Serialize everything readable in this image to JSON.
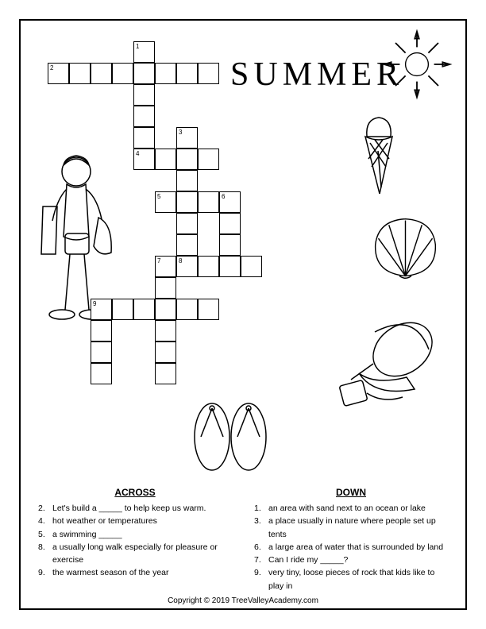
{
  "title": "SUMMER",
  "copyright": "Copyright © 2019 TreeValleyAcademy.com",
  "cell_size": 27,
  "grid_colors": {
    "border": "#000000",
    "fill": "#ffffff"
  },
  "clues": {
    "across_label": "ACROSS",
    "down_label": "DOWN",
    "across": [
      {
        "n": "2.",
        "text": "Let's build a _____ to help keep us warm."
      },
      {
        "n": "4.",
        "text": "hot weather or temperatures"
      },
      {
        "n": "5.",
        "text": "a swimming _____"
      },
      {
        "n": "8.",
        "text": "a usually long walk especially for pleasure or exercise"
      },
      {
        "n": "9.",
        "text": "the warmest season of the year"
      }
    ],
    "down": [
      {
        "n": "1.",
        "text": "an area with sand next to an ocean or lake"
      },
      {
        "n": "3.",
        "text": "a place usually in nature where people set up tents"
      },
      {
        "n": "6.",
        "text": "a large area of water that is surrounded by land"
      },
      {
        "n": "7.",
        "text": "Can I ride my _____?"
      },
      {
        "n": "9.",
        "text": "very tiny, loose pieces of rock that kids like to play in"
      }
    ]
  },
  "grid": {
    "cells": [
      {
        "r": 0,
        "c": 4,
        "n": "1"
      },
      {
        "r": 1,
        "c": 0,
        "n": "2"
      },
      {
        "r": 1,
        "c": 1
      },
      {
        "r": 1,
        "c": 2
      },
      {
        "r": 1,
        "c": 3
      },
      {
        "r": 1,
        "c": 4
      },
      {
        "r": 1,
        "c": 5
      },
      {
        "r": 1,
        "c": 6
      },
      {
        "r": 1,
        "c": 7
      },
      {
        "r": 2,
        "c": 4
      },
      {
        "r": 3,
        "c": 4
      },
      {
        "r": 4,
        "c": 4
      },
      {
        "r": 4,
        "c": 6,
        "n": "3"
      },
      {
        "r": 5,
        "c": 4,
        "n": "4"
      },
      {
        "r": 5,
        "c": 5
      },
      {
        "r": 5,
        "c": 6
      },
      {
        "r": 5,
        "c": 7
      },
      {
        "r": 6,
        "c": 6
      },
      {
        "r": 7,
        "c": 5,
        "n": "5"
      },
      {
        "r": 7,
        "c": 6
      },
      {
        "r": 7,
        "c": 7
      },
      {
        "r": 7,
        "c": 8,
        "n": "6"
      },
      {
        "r": 8,
        "c": 6
      },
      {
        "r": 8,
        "c": 8
      },
      {
        "r": 9,
        "c": 6
      },
      {
        "r": 9,
        "c": 8
      },
      {
        "r": 10,
        "c": 5,
        "n": "7"
      },
      {
        "r": 10,
        "c": 6,
        "n": "8"
      },
      {
        "r": 10,
        "c": 7
      },
      {
        "r": 10,
        "c": 8
      },
      {
        "r": 10,
        "c": 9
      },
      {
        "r": 11,
        "c": 5
      },
      {
        "r": 12,
        "c": 2,
        "n": "9"
      },
      {
        "r": 12,
        "c": 3
      },
      {
        "r": 12,
        "c": 4
      },
      {
        "r": 12,
        "c": 5
      },
      {
        "r": 12,
        "c": 6
      },
      {
        "r": 12,
        "c": 7
      },
      {
        "r": 13,
        "c": 2
      },
      {
        "r": 13,
        "c": 5
      },
      {
        "r": 14,
        "c": 2
      },
      {
        "r": 14,
        "c": 5
      },
      {
        "r": 15,
        "c": 2
      },
      {
        "r": 15,
        "c": 5
      }
    ]
  },
  "illustrations": {
    "sun": "sun-icon",
    "icecream": "icecream-icon",
    "shell": "shell-icon",
    "bucket": "bucket-icon",
    "sandals": "sandals-icon",
    "boy": "boy-icon"
  }
}
